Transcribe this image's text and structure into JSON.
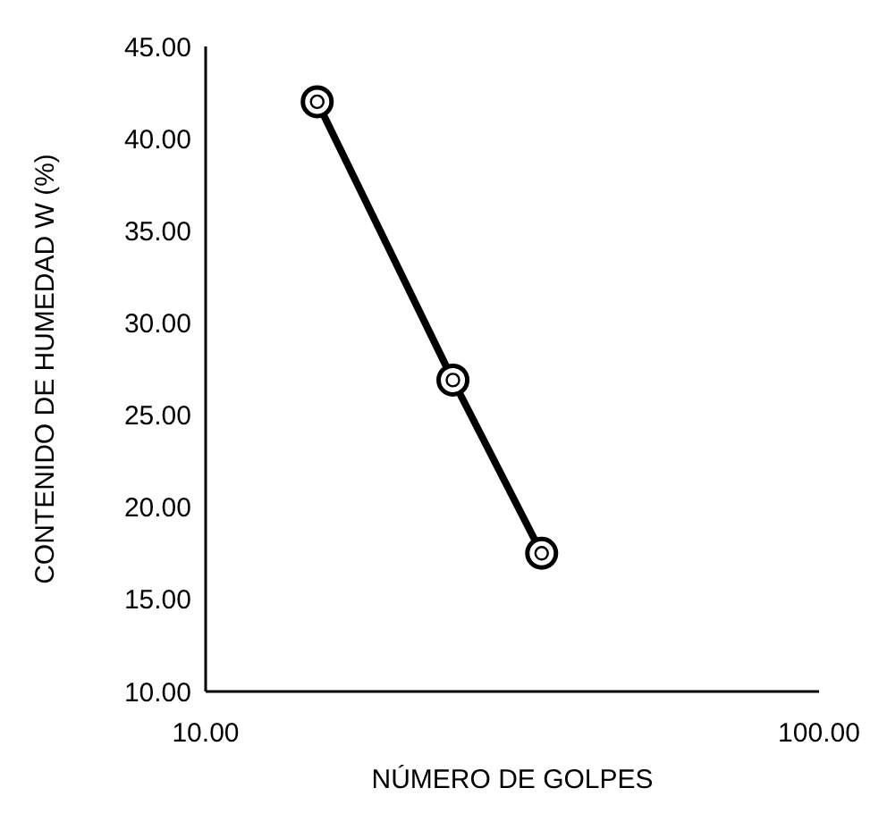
{
  "chart_data": {
    "type": "line",
    "xlabel": "NÚMERO DE GOLPES",
    "ylabel": "CONTENIDO DE HUMEDAD W (%)",
    "x": [
      15.2,
      25.3,
      35.3
    ],
    "series": [
      {
        "color": "#000000",
        "values": [
          42.0,
          26.9,
          17.5
        ]
      }
    ],
    "log": "x",
    "xlim": [
      10,
      100
    ],
    "xticks": [
      {
        "value": 10,
        "label": "10.00"
      },
      {
        "value": 100,
        "label": "100.00"
      }
    ],
    "ylim": [
      10,
      45
    ],
    "yticks": [
      {
        "value": 10,
        "label": "10.00"
      },
      {
        "value": 15,
        "label": "15.00"
      },
      {
        "value": 20,
        "label": "20.00"
      },
      {
        "value": 25,
        "label": "25.00"
      },
      {
        "value": 30,
        "label": "30.00"
      },
      {
        "value": 35,
        "label": "35.00"
      },
      {
        "value": 40,
        "label": "40.00"
      },
      {
        "value": 45,
        "label": "45.00"
      }
    ],
    "marker": "circle",
    "line_style": "solid",
    "grid": false
  }
}
